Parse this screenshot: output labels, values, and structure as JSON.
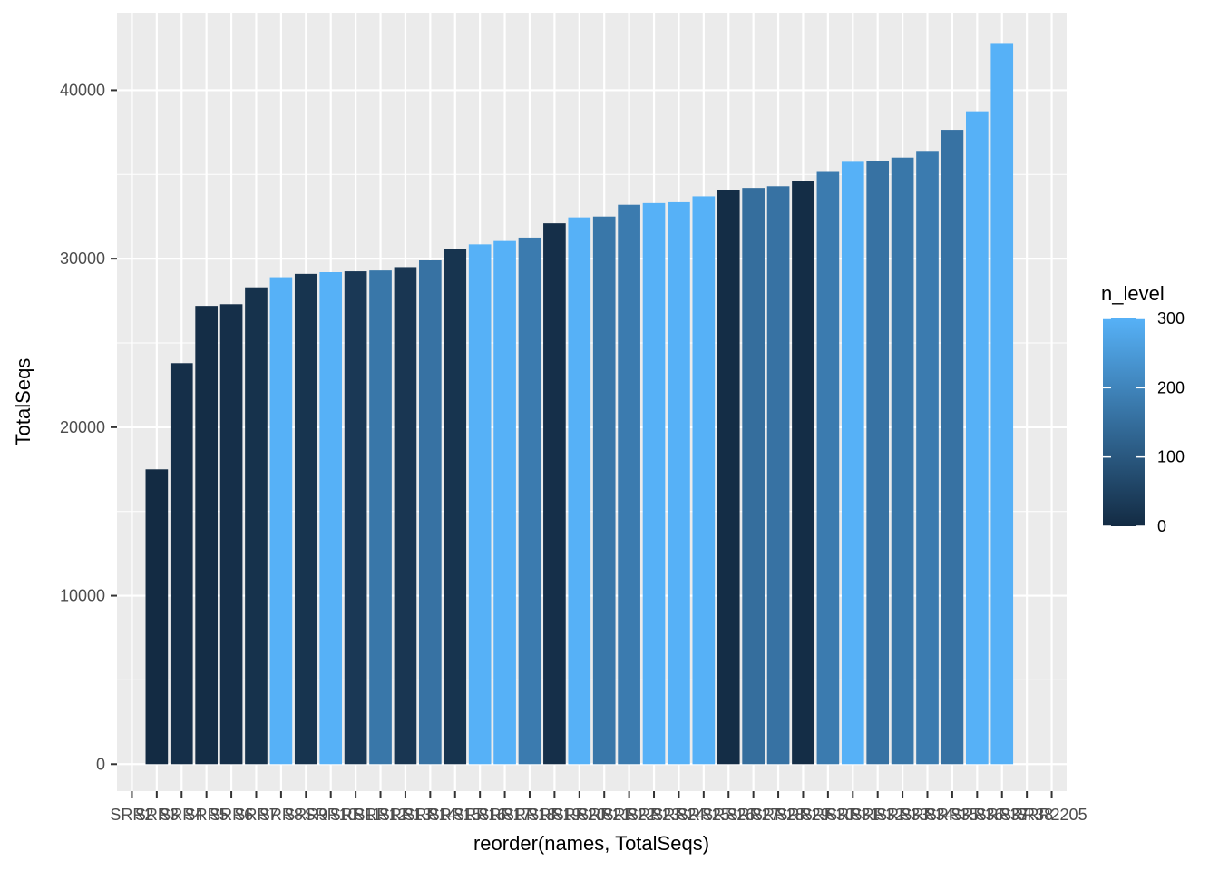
{
  "chart_data": {
    "type": "bar",
    "xlabel": "reorder(names, TotalSeqs)",
    "ylabel": "TotalSeqs",
    "ylim": [
      -1600,
      44600
    ],
    "y_ticks": [
      0,
      10000,
      20000,
      30000,
      40000
    ],
    "grid": true,
    "legend": {
      "title": "n_level",
      "placement": "right",
      "type": "colorbar",
      "ticks": [
        0,
        100,
        200,
        300
      ],
      "low_color": "#132B43",
      "high_color": "#56B1F7"
    },
    "categories": [
      "SRR2",
      "SRR3",
      "SRR4",
      "SRR5",
      "SRR6",
      "SRR7",
      "SRR8",
      "SRR9",
      "SRR10",
      "SRR11",
      "SRR12",
      "SRR13",
      "SRR14",
      "SRR15",
      "SRR16",
      "SRR17",
      "SRR18",
      "SRR19",
      "SRR20",
      "SRR21",
      "SRR22",
      "SRR23",
      "SRR24",
      "SRR25",
      "SRR26",
      "SRR27",
      "SRR28",
      "SRR29",
      "SRR30",
      "SRR31",
      "SRR32",
      "SRR33",
      "SRR34",
      "SRR35",
      "SRR36",
      "SRR37",
      "SRR38",
      "SRR2205"
    ],
    "values": [
      0,
      17500,
      23800,
      27200,
      27300,
      28300,
      28900,
      29100,
      29200,
      29250,
      29300,
      29500,
      29900,
      30600,
      30850,
      31050,
      31250,
      32100,
      32450,
      32500,
      33200,
      33300,
      33350,
      33700,
      34100,
      34200,
      34300,
      34600,
      35150,
      35750,
      35800,
      36000,
      36400,
      37650,
      38750,
      42800,
      0,
      0
    ],
    "n_level": [
      0,
      0,
      10,
      5,
      10,
      15,
      300,
      20,
      300,
      30,
      170,
      25,
      160,
      20,
      300,
      300,
      180,
      10,
      300,
      170,
      180,
      300,
      300,
      300,
      5,
      150,
      160,
      5,
      180,
      300,
      160,
      170,
      180,
      160,
      300,
      300,
      0,
      0
    ]
  }
}
